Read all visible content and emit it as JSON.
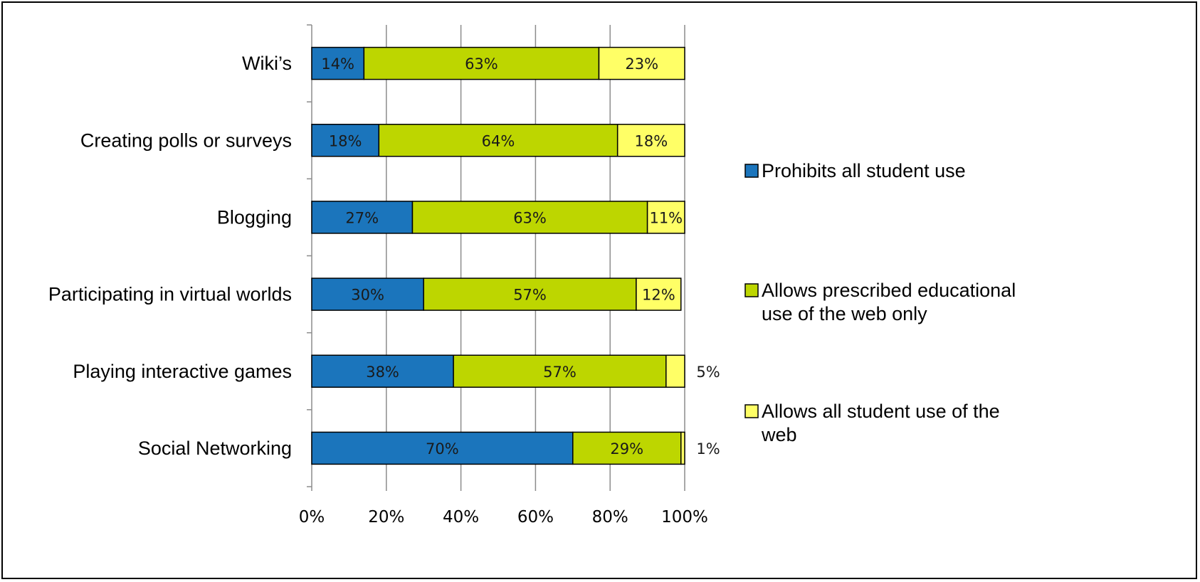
{
  "chart_data": {
    "type": "bar",
    "orientation": "horizontal",
    "stacked": "percent",
    "categories": [
      "Wiki’s",
      "Creating polls or surveys",
      "Blogging",
      "Participating in virtual worlds",
      "Playing interactive games",
      "Social Networking"
    ],
    "series": [
      {
        "name": "Prohibits all student use",
        "color": "#1b75bc",
        "values": [
          14,
          18,
          27,
          30,
          38,
          70
        ]
      },
      {
        "name": "Allows prescribed educational use of the web only",
        "color": "#bdd600",
        "values": [
          63,
          64,
          63,
          57,
          57,
          29
        ]
      },
      {
        "name": "Allows all student use of the web",
        "color": "#ffff66",
        "values": [
          23,
          18,
          11,
          12,
          5,
          1
        ]
      }
    ],
    "data_labels": [
      [
        "14%",
        "63%",
        "23%"
      ],
      [
        "18%",
        "64%",
        "18%"
      ],
      [
        "27%",
        "63%",
        "11%"
      ],
      [
        "30%",
        "57%",
        "12%"
      ],
      [
        "38%",
        "57%",
        "5%"
      ],
      [
        "70%",
        "29%",
        "1%"
      ]
    ],
    "xlim": [
      0,
      100
    ],
    "x_ticks": [
      "0%",
      "20%",
      "40%",
      "60%",
      "80%",
      "100%"
    ],
    "title": "",
    "xlabel": "",
    "ylabel": "",
    "grid": "vertical",
    "legend_position": "right",
    "legend_lines": [
      [
        "Prohibits all student use"
      ],
      [
        "Allows prescribed educational",
        "use of the web only"
      ],
      [
        "Allows all student use of the",
        "web"
      ]
    ]
  }
}
